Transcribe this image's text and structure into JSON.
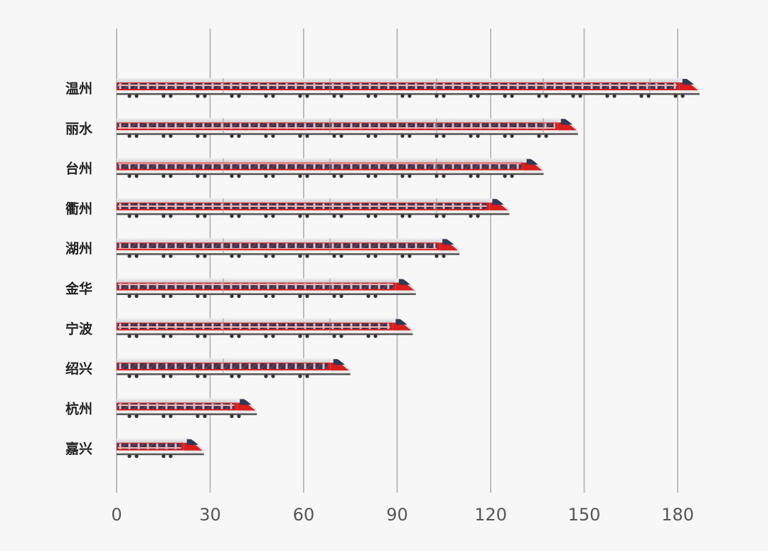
{
  "chart_data": {
    "type": "bar",
    "orientation": "horizontal",
    "categories": [
      "温州",
      "丽水",
      "台州",
      "衢州",
      "湖州",
      "金华",
      "宁波",
      "绍兴",
      "杭州",
      "嘉兴"
    ],
    "values": [
      187,
      148,
      137,
      126,
      110,
      96,
      95,
      75,
      45,
      28
    ],
    "xlim": [
      0,
      180
    ],
    "xticks": [
      "0",
      "30",
      "60",
      "90",
      "120",
      "150",
      "180"
    ],
    "grid": "vertical",
    "colors": {
      "bar_body": "#d81e1e",
      "bar_top": "#e6e6e6",
      "window": "#2d3a58",
      "gridline": "#bdbdbd",
      "background": "#f7f7f7"
    },
    "bar_style": "train-icon"
  }
}
